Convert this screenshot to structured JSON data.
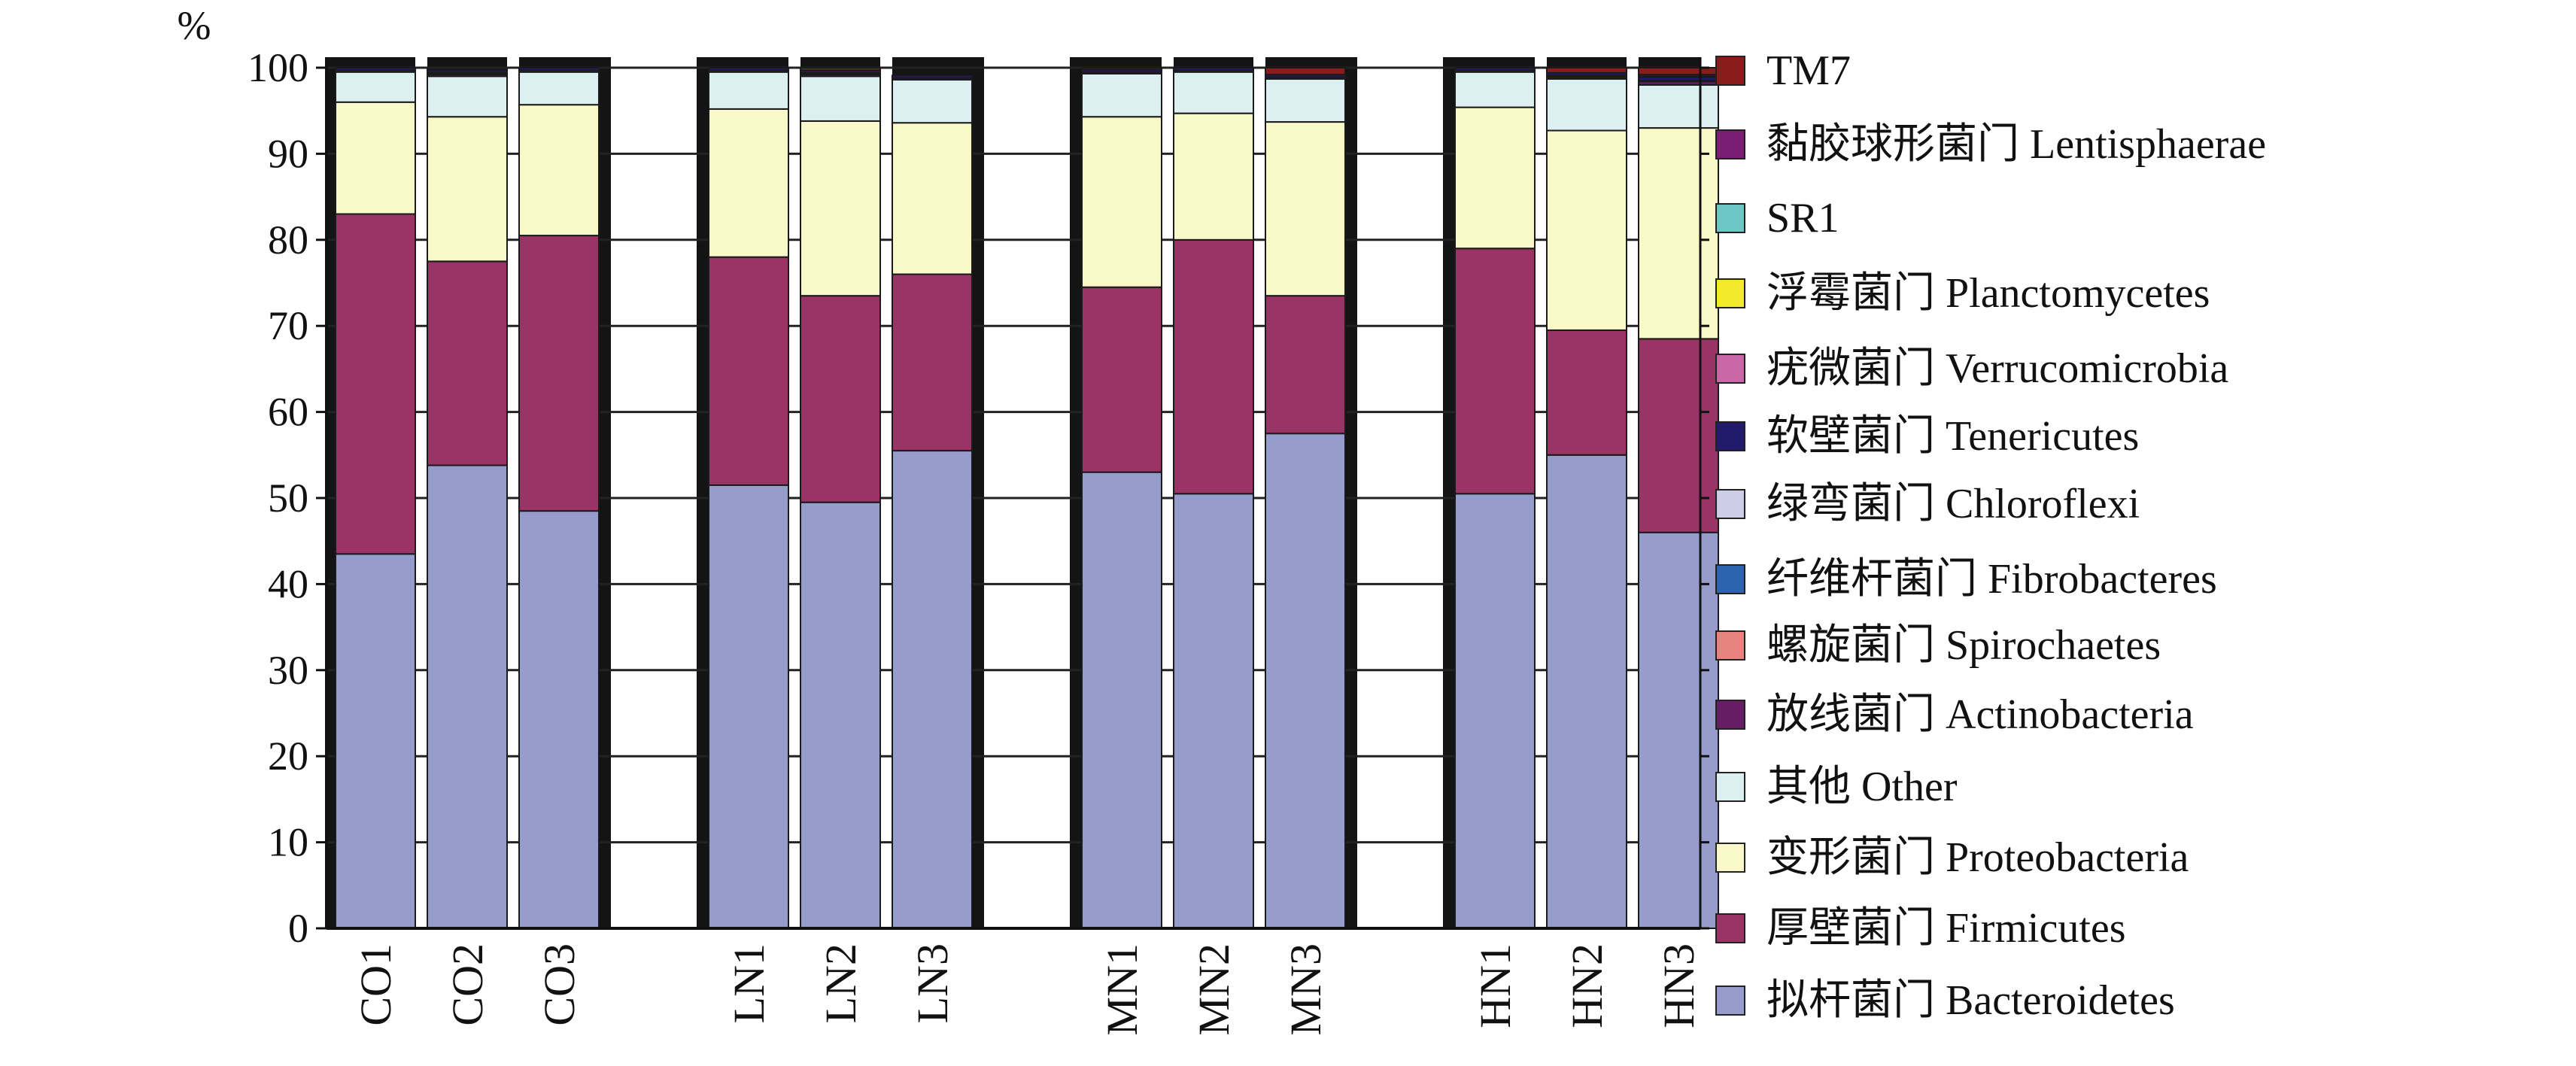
{
  "chart_data": {
    "type": "bar",
    "stacked": true,
    "unit": "%",
    "ylim": [
      0,
      100
    ],
    "yticks": [
      "0",
      "10",
      "20",
      "30",
      "40",
      "50",
      "60",
      "70",
      "80",
      "90",
      "100"
    ],
    "categories": [
      "CO1",
      "CO2",
      "CO3",
      "LN1",
      "LN2",
      "LN3",
      "MN1",
      "MN2",
      "MN3",
      "HN1",
      "HN2",
      "HN3"
    ],
    "groups": [
      [
        "CO1",
        "CO2",
        "CO3"
      ],
      [
        "LN1",
        "LN2",
        "LN3"
      ],
      [
        "MN1",
        "MN2",
        "MN3"
      ],
      [
        "HN1",
        "HN2",
        "HN3"
      ]
    ],
    "grid": true,
    "legend_position": "right",
    "series": [
      {
        "name": "拟杆菌门  Bacteroidetes",
        "color": "#969ccb",
        "values": [
          43.5,
          53.8,
          48.5,
          51.5,
          49.5,
          55.5,
          53.0,
          50.5,
          57.5,
          50.5,
          55.0,
          46.0
        ]
      },
      {
        "name": "厚壁菌门  Firmicutes",
        "color": "#9b3466",
        "values": [
          39.5,
          23.7,
          32.0,
          26.5,
          24.0,
          20.5,
          21.5,
          29.5,
          16.0,
          28.5,
          14.5,
          22.5
        ]
      },
      {
        "name": "变形菌门  Proteobacteria",
        "color": "#f9f8c9",
        "values": [
          13.0,
          16.8,
          15.2,
          17.2,
          20.3,
          17.6,
          19.8,
          14.7,
          20.2,
          16.4,
          23.2,
          24.5
        ]
      },
      {
        "name": "其他  Other",
        "color": "#dcf0f1",
        "values": [
          3.5,
          4.7,
          3.8,
          4.3,
          5.2,
          5.0,
          5.0,
          4.8,
          5.0,
          4.1,
          6.0,
          5.0
        ]
      },
      {
        "name": "放线菌门  Actinobacteria",
        "color": "#661d63",
        "values": [
          0.2,
          0.2,
          0.2,
          0.2,
          0.2,
          0.2,
          0.2,
          0.2,
          0.2,
          0.2,
          0.2,
          0.4
        ]
      },
      {
        "name": "螺旋菌门  Spirochaetes",
        "color": "#e8837f",
        "values": [
          0.0,
          0.1,
          0.0,
          0.0,
          0.1,
          0.0,
          0.0,
          0.0,
          0.0,
          0.0,
          0.1,
          0.0
        ]
      },
      {
        "name": "纤维杆菌门  Fibrobacteres",
        "color": "#2d64b0",
        "values": [
          0.0,
          0.1,
          0.0,
          0.0,
          0.1,
          0.0,
          0.0,
          0.0,
          0.0,
          0.0,
          0.1,
          0.0
        ]
      },
      {
        "name": "绿弯菌门  Chloroflexi",
        "color": "#cdcde8",
        "values": [
          0.0,
          0.0,
          0.0,
          0.0,
          0.0,
          0.0,
          0.0,
          0.0,
          0.0,
          0.0,
          0.0,
          0.1
        ]
      },
      {
        "name": "软壁菌门  Tenericutes",
        "color": "#221a6a",
        "values": [
          0.3,
          0.3,
          0.3,
          0.3,
          0.3,
          0.3,
          0.3,
          0.3,
          0.3,
          0.3,
          0.3,
          0.4
        ]
      },
      {
        "name": "疣微菌门  Verrucomicrobia",
        "color": "#c967a7",
        "values": [
          0.0,
          0.0,
          0.0,
          0.0,
          0.0,
          0.0,
          0.0,
          0.0,
          0.0,
          0.0,
          0.0,
          0.1
        ]
      },
      {
        "name": "浮霉菌门  Planctomycetes",
        "color": "#f3ea2b",
        "values": [
          0.0,
          0.0,
          0.0,
          0.0,
          0.0,
          0.0,
          0.0,
          0.0,
          0.0,
          0.0,
          0.0,
          0.0
        ]
      },
      {
        "name": "SR1",
        "color": "#6cc8c5",
        "values": [
          0.0,
          0.0,
          0.0,
          0.0,
          0.0,
          0.0,
          0.0,
          0.0,
          0.0,
          0.0,
          0.0,
          0.0
        ]
      },
      {
        "name": "黏胶球形菌门  Lentisphaerae",
        "color": "#7a1e74",
        "values": [
          0.0,
          0.0,
          0.0,
          0.0,
          0.0,
          0.0,
          0.0,
          0.0,
          0.0,
          0.0,
          0.0,
          0.2
        ]
      },
      {
        "name": "TM7",
        "color": "#8b1c1c",
        "values": [
          0.0,
          0.1,
          0.0,
          0.0,
          0.3,
          0.0,
          0.2,
          0.0,
          0.8,
          0.0,
          0.6,
          0.8
        ]
      }
    ],
    "legend_order": [
      "TM7",
      "黏胶球形菌门  Lentisphaerae",
      "SR1",
      "浮霉菌门  Planctomycetes",
      "疣微菌门  Verrucomicrobia",
      "软壁菌门  Tenericutes",
      "绿弯菌门  Chloroflexi",
      "纤维杆菌门  Fibrobacteres",
      "螺旋菌门  Spirochaetes",
      "放线菌门  Actinobacteria",
      "其他  Other",
      "变形菌门  Proteobacteria",
      "厚壁菌门  Firmicutes",
      "拟杆菌门  Bacteroidetes"
    ]
  }
}
